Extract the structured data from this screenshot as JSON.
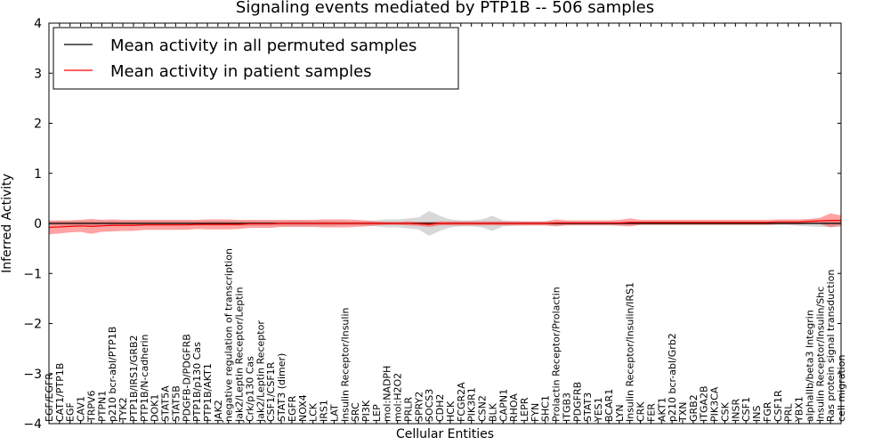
{
  "chart_data": {
    "type": "line",
    "title": "Signaling events mediated by PTP1B -- 506 samples",
    "xlabel": "Cellular Entities",
    "ylabel": "Inferred Activity",
    "ylim": [
      -4,
      4
    ],
    "yticks": [
      -4,
      -3,
      -2,
      -1,
      0,
      1,
      2,
      3,
      4
    ],
    "ytick_labels": [
      "−4",
      "−3",
      "−2",
      "−1",
      "0",
      "1",
      "2",
      "3",
      "4"
    ],
    "legend": {
      "position": "top-left",
      "entries": [
        {
          "label": "Mean activity in all permuted samples",
          "color": "#000000"
        },
        {
          "label": "Mean activity in patient samples",
          "color": "#ff0000"
        }
      ]
    },
    "categories": [
      "EGF/EGFR",
      "CAT1/PTP1B",
      "EGF",
      "CAV1",
      "TRPV6",
      "PTPN1",
      "p210 bcr-abl/PTP1B",
      "TYK2",
      "PTP1B/IRS1/GRB2",
      "PTP1B/N-cadherin",
      "DOK1",
      "STAT5A",
      "STAT5B",
      "PDGFB-D/PDGFRB",
      "PTP1B/p130 Cas",
      "PTP1B/AKT1",
      "JAK2",
      "negative regulation of transcription",
      "Jak2/Leptin Receptor/Leptin",
      "Crk/p130 Cas",
      "Jak2/Leptin Receptor",
      "CSF1/CSF1R",
      "STAT3 (dimer)",
      "EGFR",
      "NOX4",
      "LCK",
      "IRS1",
      "LAT",
      "Insulin Receptor/Insulin",
      "SRC",
      "PI3K",
      "LEP",
      "mol:NADPH",
      "mol:H2O2",
      "PRLR",
      "SPRY2",
      "SOCS3",
      "CDH2",
      "HCK",
      "FCGR2A",
      "PIK3R1",
      "CSN2",
      "BLK",
      "CAPN1",
      "RHOA",
      "LEPR",
      "FYN",
      "SHC1",
      "Prolactin Receptor/Prolactin",
      "ITGB3",
      "PDGFRB",
      "STAT3",
      "YES1",
      "BCAR1",
      "LYN",
      "Insulin Receptor/Insulin/IRS1",
      "CRK",
      "FER",
      "AKT1",
      "p210 bcr-abl/Grb2",
      "TXN",
      "GRB2",
      "ITGA2B",
      "PIK3CA",
      "CSK",
      "INSR",
      "CSF1",
      "INS",
      "FGR",
      "CSF1R",
      "PRL",
      "YBX1",
      "alphaIIb/beta3 Integrin",
      "Insulin Receptor/Insulin/Shc",
      "Ras protein signal transduction",
      "cell migration"
    ],
    "series": [
      {
        "name": "Mean activity in all permuted samples",
        "color": "#000000",
        "values": [
          0.0,
          0.0,
          0.0,
          0.0,
          0.0,
          0.0,
          0.0,
          0.0,
          0.0,
          0.0,
          0.0,
          0.0,
          0.0,
          0.0,
          0.0,
          0.0,
          0.0,
          0.0,
          0.0,
          0.0,
          0.0,
          0.0,
          0.0,
          0.0,
          0.0,
          0.0,
          0.0,
          0.0,
          0.0,
          0.0,
          0.0,
          0.0,
          0.0,
          0.0,
          0.0,
          0.0,
          0.0,
          0.0,
          0.0,
          0.0,
          0.0,
          0.0,
          0.0,
          0.0,
          0.0,
          0.0,
          0.0,
          0.0,
          0.0,
          0.0,
          0.0,
          0.0,
          0.0,
          0.0,
          0.0,
          0.0,
          0.0,
          0.0,
          0.0,
          0.0,
          0.0,
          0.0,
          0.0,
          0.0,
          0.0,
          0.0,
          0.0,
          0.0,
          0.0,
          0.0,
          0.0,
          0.0,
          0.0,
          0.0,
          0.0,
          0.0
        ],
        "band": [
          0.04,
          0.05,
          0.05,
          0.05,
          0.05,
          0.05,
          0.05,
          0.05,
          0.05,
          0.05,
          0.05,
          0.05,
          0.05,
          0.05,
          0.05,
          0.05,
          0.05,
          0.05,
          0.05,
          0.05,
          0.05,
          0.05,
          0.05,
          0.05,
          0.05,
          0.05,
          0.05,
          0.05,
          0.04,
          0.04,
          0.04,
          0.06,
          0.08,
          0.08,
          0.1,
          0.12,
          0.25,
          0.15,
          0.08,
          0.06,
          0.06,
          0.08,
          0.15,
          0.06,
          0.05,
          0.04,
          0.04,
          0.04,
          0.04,
          0.04,
          0.03,
          0.03,
          0.03,
          0.03,
          0.03,
          0.03,
          0.03,
          0.03,
          0.03,
          0.03,
          0.03,
          0.03,
          0.03,
          0.03,
          0.03,
          0.03,
          0.03,
          0.03,
          0.03,
          0.03,
          0.03,
          0.05,
          0.06,
          0.07,
          0.07,
          0.07
        ]
      },
      {
        "name": "Mean activity in patient samples",
        "color": "#ff0000",
        "values": [
          -0.08,
          -0.07,
          -0.06,
          -0.05,
          -0.06,
          -0.05,
          -0.04,
          -0.04,
          -0.04,
          -0.03,
          -0.03,
          -0.03,
          -0.03,
          -0.03,
          -0.02,
          -0.02,
          -0.02,
          -0.02,
          -0.02,
          -0.01,
          -0.01,
          -0.01,
          0.0,
          0.0,
          0.0,
          0.0,
          0.0,
          0.0,
          0.0,
          0.0,
          0.0,
          0.0,
          0.0,
          0.0,
          0.0,
          -0.01,
          -0.02,
          0.0,
          0.0,
          0.0,
          0.0,
          0.0,
          0.0,
          0.0,
          0.0,
          0.0,
          0.0,
          0.0,
          0.01,
          0.01,
          0.01,
          0.01,
          0.01,
          0.01,
          0.01,
          0.02,
          0.02,
          0.02,
          0.02,
          0.02,
          0.02,
          0.02,
          0.02,
          0.02,
          0.02,
          0.02,
          0.02,
          0.02,
          0.02,
          0.03,
          0.03,
          0.03,
          0.04,
          0.05,
          0.06,
          0.06
        ],
        "band": [
          0.14,
          0.13,
          0.12,
          0.12,
          0.15,
          0.12,
          0.12,
          0.11,
          0.11,
          0.1,
          0.1,
          0.1,
          0.1,
          0.1,
          0.09,
          0.1,
          0.1,
          0.1,
          0.09,
          0.08,
          0.08,
          0.08,
          0.07,
          0.07,
          0.07,
          0.07,
          0.08,
          0.08,
          0.08,
          0.07,
          0.06,
          0.04,
          0.03,
          0.03,
          0.04,
          0.04,
          0.05,
          0.04,
          0.04,
          0.04,
          0.04,
          0.04,
          0.04,
          0.04,
          0.04,
          0.04,
          0.04,
          0.04,
          0.07,
          0.05,
          0.05,
          0.05,
          0.05,
          0.05,
          0.06,
          0.08,
          0.05,
          0.05,
          0.05,
          0.05,
          0.05,
          0.05,
          0.05,
          0.05,
          0.05,
          0.05,
          0.05,
          0.05,
          0.05,
          0.05,
          0.05,
          0.05,
          0.05,
          0.06,
          0.14,
          0.1
        ]
      }
    ]
  }
}
